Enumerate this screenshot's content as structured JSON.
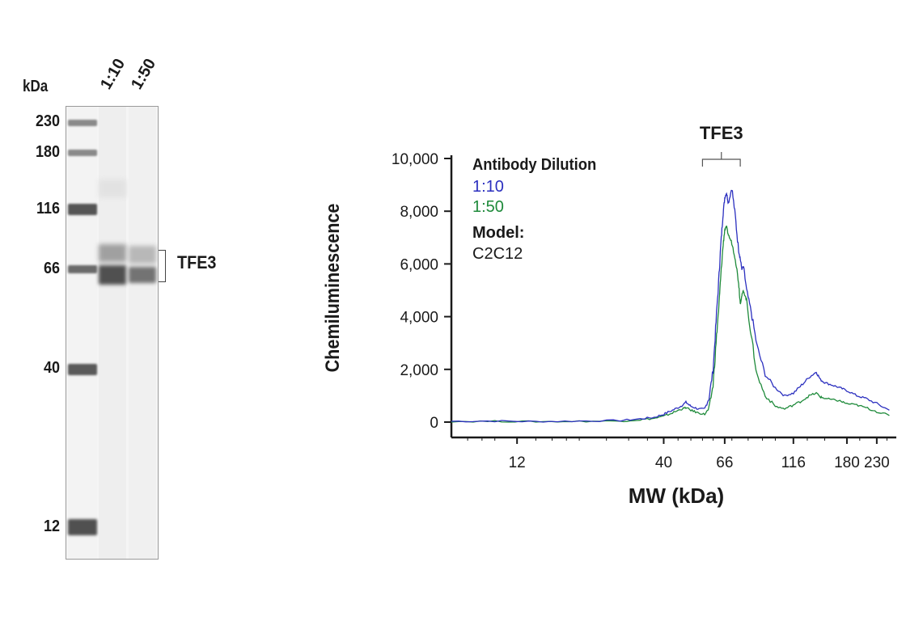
{
  "blot": {
    "unit": "kDa",
    "lanes": [
      "1:10",
      "1:50"
    ],
    "markers": [
      "230",
      "180",
      "116",
      "66",
      "40",
      "12"
    ],
    "target_label": "TFE3"
  },
  "chart_data": {
    "type": "line",
    "xlabel": "MW (kDa)",
    "ylabel": "Chemiluminescence",
    "x_scale": "log",
    "x_ticks": [
      12,
      40,
      66,
      116,
      180,
      230
    ],
    "x_tick_labels": [
      "12",
      "40",
      "66",
      "116",
      "180",
      "230"
    ],
    "xlim": [
      7,
      270
    ],
    "ylim": [
      0,
      10000
    ],
    "y_ticks": [
      0,
      2000,
      4000,
      6000,
      8000,
      10000
    ],
    "y_tick_labels": [
      "0",
      "2,000",
      "4,000",
      "6,000",
      "8,000",
      "10,000"
    ],
    "grid": false,
    "legend": {
      "placement": "top-left",
      "title": "Antibody Dilution",
      "model_label": "Model:",
      "model_value": "C2C12"
    },
    "annotation": {
      "label": "TFE3",
      "x_from": 55,
      "x_to": 75
    },
    "series": [
      {
        "name": "1:10",
        "color": "#2b2fbf",
        "x": [
          7,
          10,
          14,
          20,
          28,
          33,
          37,
          40,
          43,
          46,
          48,
          50,
          53,
          56,
          58,
          60,
          61.5,
          63,
          64,
          65,
          66,
          67,
          68,
          70,
          72,
          74,
          75,
          76,
          77,
          79,
          82,
          86,
          92,
          100,
          108,
          116,
          124,
          132,
          140,
          145,
          150,
          160,
          170,
          180,
          195,
          210,
          230,
          255
        ],
        "y": [
          30,
          40,
          20,
          40,
          60,
          120,
          180,
          300,
          450,
          600,
          750,
          600,
          500,
          500,
          900,
          2000,
          3800,
          5600,
          6800,
          7800,
          8500,
          8700,
          8300,
          8900,
          7800,
          6500,
          6200,
          5800,
          5900,
          5000,
          4200,
          2900,
          1800,
          1300,
          1000,
          1100,
          1400,
          1700,
          1900,
          1600,
          1500,
          1400,
          1300,
          1200,
          1000,
          900,
          700,
          450
        ]
      },
      {
        "name": "1:50",
        "color": "#1e8a3a",
        "x": [
          7,
          10,
          14,
          20,
          28,
          33,
          37,
          40,
          43,
          46,
          48,
          50,
          53,
          56,
          58,
          60,
          61.5,
          63,
          64,
          65,
          66,
          67,
          68,
          70,
          72,
          74,
          75,
          76,
          77,
          79,
          82,
          86,
          92,
          100,
          108,
          116,
          124,
          132,
          140,
          145,
          150,
          160,
          170,
          180,
          195,
          210,
          230,
          255
        ],
        "y": [
          20,
          30,
          15,
          30,
          40,
          90,
          140,
          220,
          350,
          480,
          550,
          450,
          350,
          300,
          500,
          1400,
          3000,
          4500,
          5600,
          6600,
          7300,
          7400,
          7100,
          6800,
          6200,
          5300,
          4500,
          4800,
          5000,
          4600,
          3300,
          1800,
          1000,
          600,
          500,
          650,
          800,
          1000,
          1100,
          950,
          900,
          850,
          800,
          700,
          650,
          550,
          400,
          250
        ]
      }
    ]
  }
}
